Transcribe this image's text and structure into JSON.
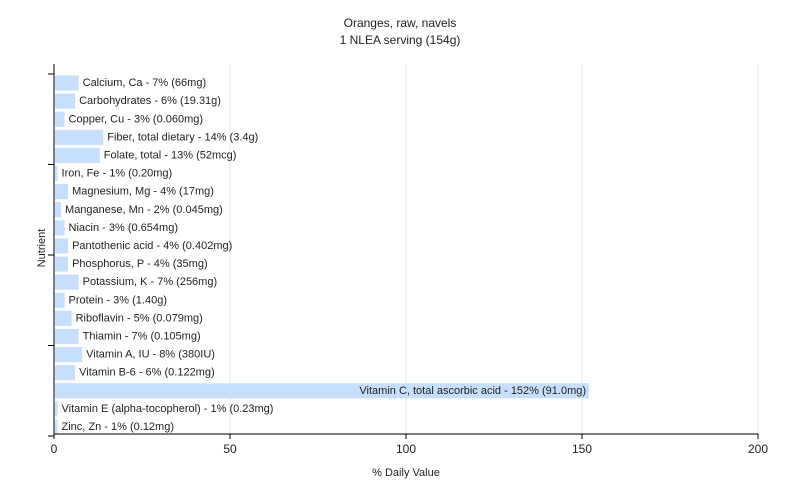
{
  "chart_data": {
    "type": "bar",
    "orientation": "horizontal",
    "title": "Oranges, raw, navels",
    "subtitle": "1 NLEA serving (154g)",
    "xlabel": "% Daily Value",
    "ylabel": "Nutrient",
    "xlim": [
      0,
      200
    ],
    "xticks": [
      0,
      50,
      100,
      150,
      200
    ],
    "grid": true,
    "colors": {
      "bar": "#c7dffc",
      "grid": "#e6e6e6",
      "axis": "#000000",
      "text": "#222222"
    },
    "categories": [
      "Calcium, Ca",
      "Carbohydrates",
      "Copper, Cu",
      "Fiber, total dietary",
      "Folate, total",
      "Iron, Fe",
      "Magnesium, Mg",
      "Manganese, Mn",
      "Niacin",
      "Pantothenic acid",
      "Phosphorus, P",
      "Potassium, K",
      "Protein",
      "Riboflavin",
      "Thiamin",
      "Vitamin A, IU",
      "Vitamin B-6",
      "Vitamin C, total ascorbic acid",
      "Vitamin E (alpha-tocopherol)",
      "Zinc, Zn"
    ],
    "values": [
      7,
      6,
      3,
      14,
      13,
      1,
      4,
      2,
      3,
      4,
      4,
      7,
      3,
      5,
      7,
      8,
      6,
      152,
      1,
      1
    ],
    "labels": [
      "Calcium, Ca - 7% (66mg)",
      "Carbohydrates - 6% (19.31g)",
      "Copper, Cu - 3% (0.060mg)",
      "Fiber, total dietary - 14% (3.4g)",
      "Folate, total - 13% (52mcg)",
      "Iron, Fe - 1% (0.20mg)",
      "Magnesium, Mg - 4% (17mg)",
      "Manganese, Mn - 2% (0.045mg)",
      "Niacin - 3% (0.654mg)",
      "Pantothenic acid - 4% (0.402mg)",
      "Phosphorus, P - 4% (35mg)",
      "Potassium, K - 7% (256mg)",
      "Protein - 3% (1.40g)",
      "Riboflavin - 5% (0.079mg)",
      "Thiamin - 7% (0.105mg)",
      "Vitamin A, IU - 8% (380IU)",
      "Vitamin B-6 - 6% (0.122mg)",
      "Vitamin C, total ascorbic acid - 152% (91.0mg)",
      "Vitamin E (alpha-tocopherol) - 1% (0.23mg)",
      "Zinc, Zn - 1% (0.12mg)"
    ]
  }
}
